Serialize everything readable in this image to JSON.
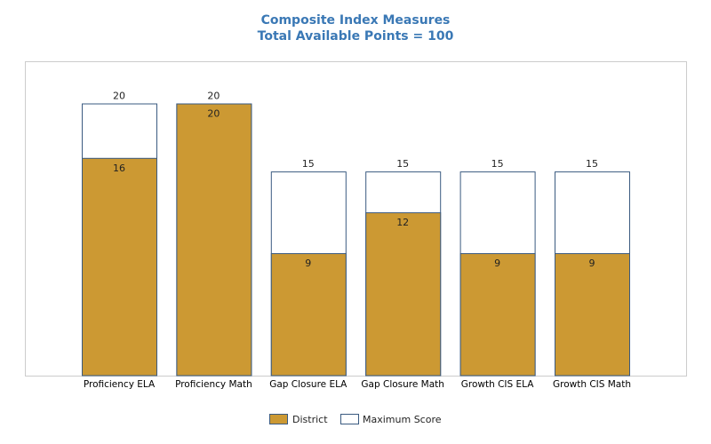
{
  "chart_data": {
    "type": "bar",
    "title": "Composite Index Measures",
    "subtitle": "Total Available Points = 100",
    "categories": [
      "Proficiency ELA",
      "Proficiency Math",
      "Gap Closure ELA",
      "Gap Closure Math",
      "Growth CIS ELA",
      "Growth CIS Math"
    ],
    "series": [
      {
        "name": "District",
        "values": [
          16,
          20,
          9,
          12,
          9,
          9
        ]
      },
      {
        "name": "Maximum Score",
        "values": [
          20,
          20,
          15,
          15,
          15,
          15
        ]
      }
    ],
    "ylim": [
      0,
      23.1
    ],
    "grid": false,
    "legend_position": "bottom",
    "colors": {
      "district": "#cc9933",
      "maximum": "#ffffff",
      "maximum_border": "#3a5a80",
      "title": "#3a78b5",
      "frame": "#cccccc"
    }
  }
}
